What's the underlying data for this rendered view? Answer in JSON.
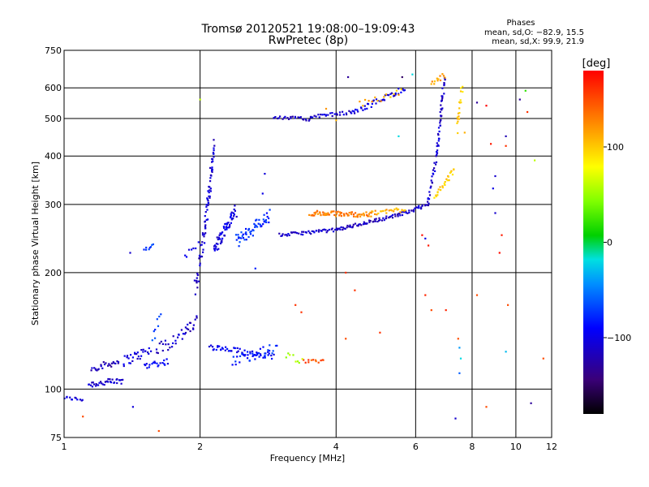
{
  "chart_data": {
    "type": "scatter",
    "title": "Tromsø 20120521 19:08:00–19:09:43",
    "subtitle": "RwPretec (8p)",
    "xlabel": "Frequency [MHz]",
    "ylabel": "Stationary phase Virtual Height [km]",
    "x_scale": "log",
    "y_scale": "log",
    "xlim": [
      1,
      12
    ],
    "ylim": [
      75,
      750
    ],
    "x_ticks": [
      1,
      2,
      4,
      6,
      8,
      10,
      12
    ],
    "y_ticks": [
      75,
      100,
      200,
      300,
      400,
      500,
      600,
      750
    ],
    "grid": true,
    "phase_info": {
      "title": "Phases",
      "line1": "mean, sd,O: −82.9, 15.5",
      "line2": "mean, sd,X:  99.9, 21.9"
    },
    "colorbar": {
      "label": "[deg]",
      "range": [
        -180,
        180
      ],
      "ticks": [
        {
          "value": 100,
          "label": "100"
        },
        {
          "value": 0,
          "label": "0"
        },
        {
          "value": -100,
          "label": "−100"
        }
      ]
    },
    "segments": [
      {
        "x0": 1.0,
        "x1": 1.1,
        "y0": 95,
        "y1": 94,
        "n": 12,
        "phase": -105,
        "jitter": 0.01
      },
      {
        "x0": 1.13,
        "x1": 1.35,
        "y0": 103,
        "y1": 105,
        "n": 35,
        "phase": -110,
        "jitter": 0.02
      },
      {
        "x0": 1.15,
        "x1": 1.32,
        "y0": 113,
        "y1": 118,
        "n": 25,
        "phase": -120,
        "jitter": 0.02
      },
      {
        "x0": 1.35,
        "x1": 1.55,
        "y0": 118,
        "y1": 126,
        "n": 28,
        "phase": -105,
        "jitter": 0.03
      },
      {
        "x0": 1.5,
        "x1": 1.7,
        "y0": 115,
        "y1": 118,
        "n": 20,
        "phase": -95,
        "jitter": 0.02
      },
      {
        "x0": 1.6,
        "x1": 1.85,
        "y0": 126,
        "y1": 140,
        "n": 24,
        "phase": -110,
        "jitter": 0.04
      },
      {
        "x0": 1.85,
        "x1": 1.97,
        "y0": 140,
        "y1": 150,
        "n": 14,
        "phase": -115,
        "jitter": 0.04
      },
      {
        "x0": 1.95,
        "x1": 2.05,
        "y0": 180,
        "y1": 260,
        "n": 30,
        "phase": -110,
        "jitter": 0.05
      },
      {
        "x0": 2.05,
        "x1": 2.15,
        "y0": 260,
        "y1": 430,
        "n": 50,
        "phase": -110,
        "jitter": 0.05
      },
      {
        "x0": 2.15,
        "x1": 2.4,
        "y0": 230,
        "y1": 290,
        "n": 60,
        "phase": -100,
        "jitter": 0.04
      },
      {
        "x0": 2.4,
        "x1": 2.85,
        "y0": 240,
        "y1": 280,
        "n": 55,
        "phase": -75,
        "jitter": 0.04
      },
      {
        "x0": 2.1,
        "x1": 2.9,
        "y0": 128,
        "y1": 122,
        "n": 55,
        "phase": -95,
        "jitter": 0.02
      },
      {
        "x0": 2.35,
        "x1": 2.95,
        "y0": 118,
        "y1": 128,
        "n": 30,
        "phase": -80,
        "jitter": 0.03
      },
      {
        "x0": 3.0,
        "x1": 4.0,
        "y0": 250,
        "y1": 258,
        "n": 45,
        "phase": -110,
        "jitter": 0.01
      },
      {
        "x0": 4.0,
        "x1": 5.5,
        "y0": 258,
        "y1": 282,
        "n": 60,
        "phase": -115,
        "jitter": 0.01
      },
      {
        "x0": 5.5,
        "x1": 6.4,
        "y0": 282,
        "y1": 300,
        "n": 30,
        "phase": -110,
        "jitter": 0.01
      },
      {
        "x0": 3.5,
        "x1": 4.8,
        "y0": 285,
        "y1": 282,
        "n": 70,
        "phase": 130,
        "jitter": 0.015
      },
      {
        "x0": 4.8,
        "x1": 5.7,
        "y0": 285,
        "y1": 292,
        "n": 25,
        "phase": 110,
        "jitter": 0.015
      },
      {
        "x0": 2.9,
        "x1": 3.5,
        "y0": 505,
        "y1": 498,
        "n": 25,
        "phase": -115,
        "jitter": 0.01
      },
      {
        "x0": 3.5,
        "x1": 4.4,
        "y0": 505,
        "y1": 520,
        "n": 30,
        "phase": -110,
        "jitter": 0.01
      },
      {
        "x0": 4.4,
        "x1": 5.7,
        "y0": 520,
        "y1": 600,
        "n": 40,
        "phase": -105,
        "jitter": 0.015
      },
      {
        "x0": 4.5,
        "x1": 5.6,
        "y0": 545,
        "y1": 585,
        "n": 15,
        "phase": 110,
        "jitter": 0.02
      },
      {
        "x0": 6.4,
        "x1": 6.7,
        "y0": 300,
        "y1": 420,
        "n": 25,
        "phase": -110,
        "jitter": 0.02
      },
      {
        "x0": 6.7,
        "x1": 6.95,
        "y0": 420,
        "y1": 640,
        "n": 40,
        "phase": -110,
        "jitter": 0.02
      },
      {
        "x0": 6.6,
        "x1": 7.3,
        "y0": 310,
        "y1": 370,
        "n": 25,
        "phase": 100,
        "jitter": 0.02
      },
      {
        "x0": 6.5,
        "x1": 6.95,
        "y0": 610,
        "y1": 650,
        "n": 12,
        "phase": 115,
        "jitter": 0.02
      },
      {
        "x0": 7.4,
        "x1": 7.6,
        "y0": 470,
        "y1": 600,
        "n": 18,
        "phase": 100,
        "jitter": 0.03
      },
      {
        "x0": 3.4,
        "x1": 3.75,
        "y0": 118,
        "y1": 118,
        "n": 12,
        "phase": 150,
        "jitter": 0.01
      },
      {
        "x0": 3.1,
        "x1": 3.35,
        "y0": 122,
        "y1": 118,
        "n": 8,
        "phase": 60,
        "jitter": 0.02
      },
      {
        "x0": 1.5,
        "x1": 1.58,
        "y0": 228,
        "y1": 235,
        "n": 8,
        "phase": -75,
        "jitter": 0.01
      },
      {
        "x0": 1.57,
        "x1": 1.63,
        "y0": 135,
        "y1": 155,
        "n": 8,
        "phase": -70,
        "jitter": 0.04
      },
      {
        "x0": 1.85,
        "x1": 2.0,
        "y0": 220,
        "y1": 240,
        "n": 8,
        "phase": -100,
        "jitter": 0.02
      }
    ],
    "scatter_points": [
      {
        "x": 1.1,
        "y": 85,
        "phase": 150
      },
      {
        "x": 1.4,
        "y": 225,
        "phase": -110
      },
      {
        "x": 1.42,
        "y": 90,
        "phase": -105
      },
      {
        "x": 1.62,
        "y": 78,
        "phase": 150
      },
      {
        "x": 2.0,
        "y": 560,
        "phase": 60
      },
      {
        "x": 2.65,
        "y": 205,
        "phase": -80
      },
      {
        "x": 2.75,
        "y": 320,
        "phase": -100
      },
      {
        "x": 2.78,
        "y": 360,
        "phase": -105
      },
      {
        "x": 3.25,
        "y": 165,
        "phase": 160
      },
      {
        "x": 3.35,
        "y": 158,
        "phase": 160
      },
      {
        "x": 3.8,
        "y": 530,
        "phase": 120
      },
      {
        "x": 4.0,
        "y": 495,
        "phase": 110
      },
      {
        "x": 4.2,
        "y": 200,
        "phase": 160
      },
      {
        "x": 4.2,
        "y": 135,
        "phase": 150
      },
      {
        "x": 4.25,
        "y": 640,
        "phase": -130
      },
      {
        "x": 4.4,
        "y": 180,
        "phase": 160
      },
      {
        "x": 5.0,
        "y": 140,
        "phase": 160
      },
      {
        "x": 5.6,
        "y": 640,
        "phase": -150
      },
      {
        "x": 5.5,
        "y": 450,
        "phase": -20
      },
      {
        "x": 5.9,
        "y": 650,
        "phase": -20
      },
      {
        "x": 6.2,
        "y": 250,
        "phase": 175
      },
      {
        "x": 6.3,
        "y": 245,
        "phase": -100
      },
      {
        "x": 6.4,
        "y": 235,
        "phase": 170
      },
      {
        "x": 6.3,
        "y": 175,
        "phase": 165
      },
      {
        "x": 6.5,
        "y": 160,
        "phase": 150
      },
      {
        "x": 7.0,
        "y": 160,
        "phase": 165
      },
      {
        "x": 7.45,
        "y": 135,
        "phase": 150
      },
      {
        "x": 7.5,
        "y": 128,
        "phase": -40
      },
      {
        "x": 7.55,
        "y": 120,
        "phase": -20
      },
      {
        "x": 7.5,
        "y": 110,
        "phase": -60
      },
      {
        "x": 7.35,
        "y": 84,
        "phase": -110
      },
      {
        "x": 7.7,
        "y": 460,
        "phase": 110
      },
      {
        "x": 8.2,
        "y": 550,
        "phase": -130
      },
      {
        "x": 8.2,
        "y": 175,
        "phase": 150
      },
      {
        "x": 8.6,
        "y": 540,
        "phase": 180
      },
      {
        "x": 8.6,
        "y": 90,
        "phase": 150
      },
      {
        "x": 8.8,
        "y": 430,
        "phase": 170
      },
      {
        "x": 8.9,
        "y": 330,
        "phase": -100
      },
      {
        "x": 9.0,
        "y": 355,
        "phase": -110
      },
      {
        "x": 9.0,
        "y": 285,
        "phase": -110
      },
      {
        "x": 9.5,
        "y": 450,
        "phase": -120
      },
      {
        "x": 9.5,
        "y": 425,
        "phase": 160
      },
      {
        "x": 9.3,
        "y": 250,
        "phase": 170
      },
      {
        "x": 9.2,
        "y": 225,
        "phase": 175
      },
      {
        "x": 9.5,
        "y": 125,
        "phase": -30
      },
      {
        "x": 9.6,
        "y": 165,
        "phase": 150
      },
      {
        "x": 10.2,
        "y": 560,
        "phase": -130
      },
      {
        "x": 10.5,
        "y": 590,
        "phase": 20
      },
      {
        "x": 10.6,
        "y": 520,
        "phase": 160
      },
      {
        "x": 10.8,
        "y": 92,
        "phase": -130
      },
      {
        "x": 11.0,
        "y": 390,
        "phase": 60
      },
      {
        "x": 11.5,
        "y": 120,
        "phase": 150
      }
    ]
  }
}
